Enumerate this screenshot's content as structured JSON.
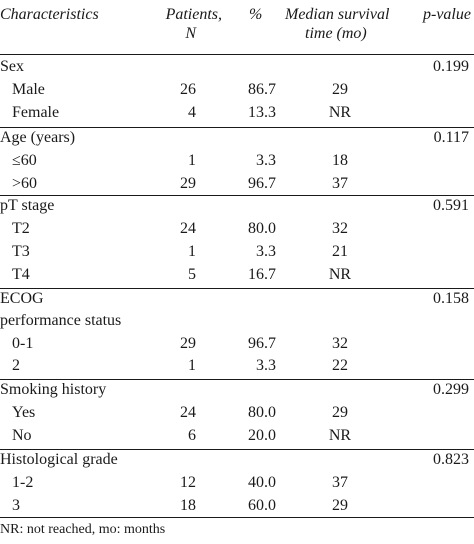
{
  "headers": {
    "characteristics": "Characteristics",
    "patients_line1": "Patients,",
    "patients_line2": "N",
    "percent": "%",
    "median_line1": "Median survival",
    "median_line2": "time (mo)",
    "pvalue": "p-value"
  },
  "rows": [
    {
      "label": "Sex",
      "indent": false,
      "n": "",
      "pct": "",
      "median": "",
      "p": "0.199"
    },
    {
      "label": "Male",
      "indent": true,
      "n": "26",
      "pct": "86.7",
      "median": "29",
      "p": ""
    },
    {
      "label": "Female",
      "indent": true,
      "n": "4",
      "pct": "13.3",
      "median": "NR",
      "p": ""
    },
    {
      "label": "Age (years)",
      "indent": false,
      "n": "",
      "pct": "",
      "median": "",
      "p": "0.117"
    },
    {
      "label": "≤60",
      "indent": true,
      "n": "1",
      "pct": "3.3",
      "median": "18",
      "p": ""
    },
    {
      "label": ">60",
      "indent": true,
      "n": "29",
      "pct": "96.7",
      "median": "37",
      "p": ""
    },
    {
      "label": "pT stage",
      "indent": false,
      "n": "",
      "pct": "",
      "median": "",
      "p": "0.591"
    },
    {
      "label": "T2",
      "indent": true,
      "n": "24",
      "pct": "80.0",
      "median": "32",
      "p": ""
    },
    {
      "label": "T3",
      "indent": true,
      "n": "1",
      "pct": "3.3",
      "median": "21",
      "p": ""
    },
    {
      "label": "T4",
      "indent": true,
      "n": "5",
      "pct": "16.7",
      "median": "NR",
      "p": ""
    },
    {
      "label": "ECOG",
      "indent": false,
      "n": "",
      "pct": "",
      "median": "",
      "p": "0.158"
    },
    {
      "label": "performance status",
      "indent": false,
      "n": "",
      "pct": "",
      "median": "",
      "p": ""
    },
    {
      "label": "0-1",
      "indent": true,
      "n": "29",
      "pct": "96.7",
      "median": "32",
      "p": ""
    },
    {
      "label": "2",
      "indent": true,
      "n": "1",
      "pct": "3.3",
      "median": "22",
      "p": ""
    },
    {
      "label": "Smoking history",
      "indent": false,
      "n": "",
      "pct": "",
      "median": "",
      "p": "0.299"
    },
    {
      "label": "Yes",
      "indent": true,
      "n": "24",
      "pct": "80.0",
      "median": "29",
      "p": ""
    },
    {
      "label": "No",
      "indent": true,
      "n": "6",
      "pct": "20.0",
      "median": "NR",
      "p": ""
    },
    {
      "label": "Histological grade",
      "indent": false,
      "n": "",
      "pct": "",
      "median": "",
      "p": "0.823"
    },
    {
      "label": "1-2",
      "indent": true,
      "n": "12",
      "pct": "40.0",
      "median": "37",
      "p": ""
    },
    {
      "label": "3",
      "indent": true,
      "n": "18",
      "pct": "60.0",
      "median": "29",
      "p": ""
    }
  ],
  "footnote": "NR: not reached, mo: months"
}
